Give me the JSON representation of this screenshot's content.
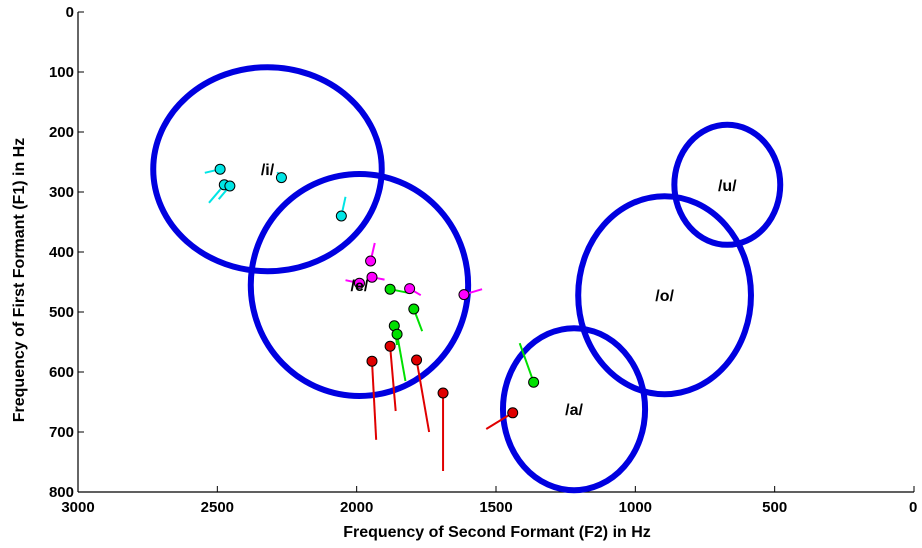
{
  "chart_data": {
    "type": "scatter",
    "title": "",
    "xlabel": "Frequency of Second Formant (F2) in Hz",
    "ylabel": "Frequency of First Formant (F1) in Hz",
    "xlim": [
      3000,
      0
    ],
    "ylim": [
      0,
      800
    ],
    "x_reversed": true,
    "y_reversed": true,
    "xticks": [
      3000,
      2500,
      2000,
      1500,
      1000,
      500,
      0
    ],
    "yticks": [
      0,
      100,
      200,
      300,
      400,
      500,
      600,
      700,
      800
    ],
    "grid": false,
    "ellipse_color": "#0000e0",
    "vowel_regions": [
      {
        "label": "/i/",
        "cx": 2320,
        "cy": 262,
        "rx": 410,
        "ry": 170
      },
      {
        "label": "/e/",
        "cx": 1990,
        "cy": 455,
        "rx": 390,
        "ry": 185
      },
      {
        "label": "/a/",
        "cx": 1220,
        "cy": 662,
        "rx": 255,
        "ry": 135
      },
      {
        "label": "/o/",
        "cx": 895,
        "cy": 472,
        "rx": 310,
        "ry": 165
      },
      {
        "label": "/u/",
        "cx": 670,
        "cy": 288,
        "rx": 190,
        "ry": 100
      }
    ],
    "series": [
      {
        "color": "#00e5e5",
        "points": [
          {
            "x": 2490,
            "y": 262,
            "tx": 2545,
            "ty": 268
          },
          {
            "x": 2475,
            "y": 288,
            "tx": 2530,
            "ty": 318
          },
          {
            "x": 2455,
            "y": 290,
            "tx": 2495,
            "ty": 312
          },
          {
            "x": 2270,
            "y": 276,
            "tx": 2285,
            "ty": 267
          },
          {
            "x": 2055,
            "y": 340,
            "tx": 2040,
            "ty": 308
          }
        ]
      },
      {
        "color": "#ff00ff",
        "points": [
          {
            "x": 1950,
            "y": 415,
            "tx": 1935,
            "ty": 385
          },
          {
            "x": 1945,
            "y": 442,
            "tx": 1900,
            "ty": 446
          },
          {
            "x": 1990,
            "y": 452,
            "tx": 2040,
            "ty": 447
          },
          {
            "x": 1810,
            "y": 461,
            "tx": 1770,
            "ty": 472
          },
          {
            "x": 1615,
            "y": 471,
            "tx": 1550,
            "ty": 462
          }
        ]
      },
      {
        "color": "#00e000",
        "points": [
          {
            "x": 1880,
            "y": 462,
            "tx": 1815,
            "ty": 468
          },
          {
            "x": 1795,
            "y": 495,
            "tx": 1765,
            "ty": 532
          },
          {
            "x": 1865,
            "y": 523,
            "tx": 1855,
            "ty": 555
          },
          {
            "x": 1855,
            "y": 537,
            "tx": 1825,
            "ty": 615
          },
          {
            "x": 1365,
            "y": 617,
            "tx": 1415,
            "ty": 552
          }
        ]
      },
      {
        "color": "#e00000",
        "points": [
          {
            "x": 1880,
            "y": 557,
            "tx": 1860,
            "ty": 665
          },
          {
            "x": 1945,
            "y": 582,
            "tx": 1930,
            "ty": 713
          },
          {
            "x": 1785,
            "y": 580,
            "tx": 1740,
            "ty": 700
          },
          {
            "x": 1690,
            "y": 635,
            "tx": 1690,
            "ty": 765
          },
          {
            "x": 1440,
            "y": 668,
            "tx": 1535,
            "ty": 695
          }
        ]
      }
    ]
  }
}
